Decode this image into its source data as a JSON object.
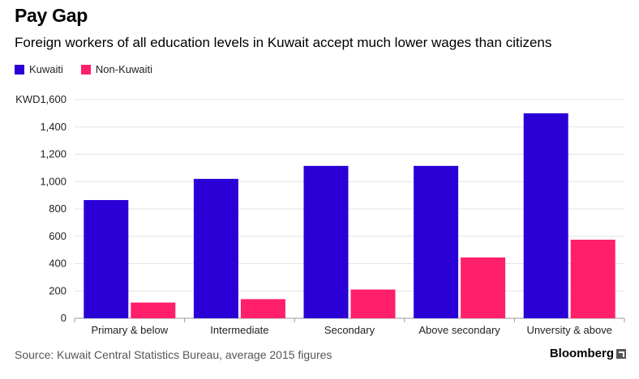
{
  "header": {
    "title": "Pay Gap",
    "subtitle": "Foreign workers of all education levels in Kuwait accept much lower wages than citizens"
  },
  "footer": {
    "source": "Source: Kuwait Central Statistics Bureau, average 2015 figures",
    "brand": "Bloomberg"
  },
  "chart_data": {
    "type": "bar",
    "categories": [
      "Primary & below",
      "Intermediate",
      "Secondary",
      "Above secondary",
      "Unversity & above"
    ],
    "series": [
      {
        "name": "Kuwaiti",
        "color": "#2a00d6",
        "values": [
          865,
          1020,
          1115,
          1115,
          1500
        ]
      },
      {
        "name": "Non-Kuwaiti",
        "color": "#ff1f6b",
        "values": [
          115,
          140,
          210,
          445,
          575
        ]
      }
    ],
    "ylim": [
      0,
      1600
    ],
    "yticks": [
      0,
      200,
      400,
      600,
      800,
      1000,
      1200,
      1400,
      1600
    ],
    "ytick_labels": [
      "0",
      "200",
      "400",
      "600",
      "800",
      "1,000",
      "1,200",
      "1,400",
      "KWD1,600"
    ],
    "grid": true,
    "legend_position": "top-left"
  }
}
